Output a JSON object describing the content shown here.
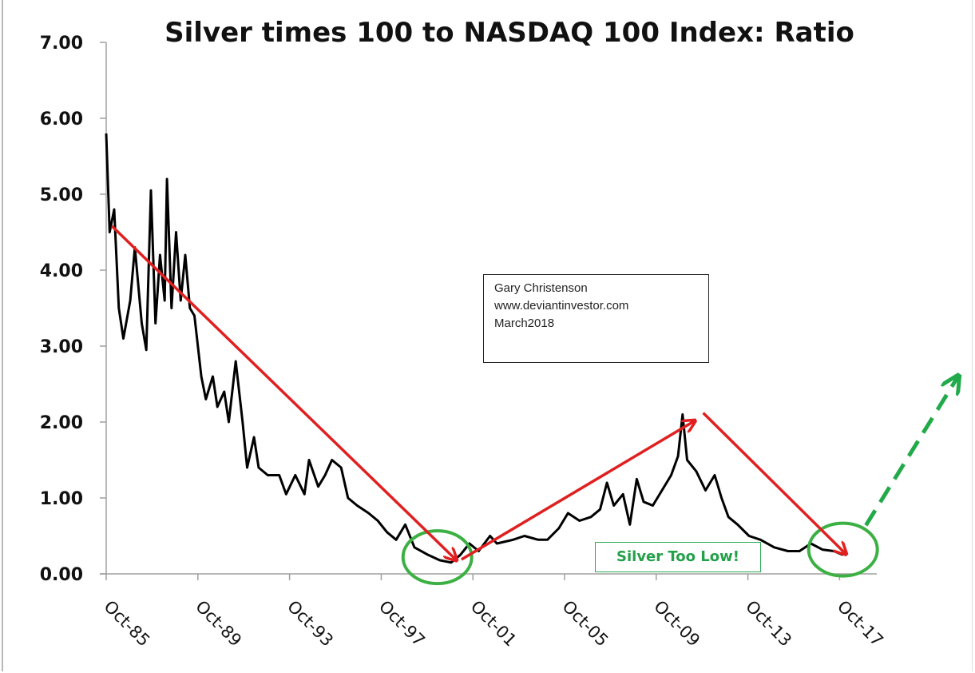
{
  "chart_data": {
    "type": "line",
    "title": "Silver times 100 to NASDAQ 100 Index:  Ratio",
    "xlabel": "",
    "ylabel": "",
    "ylim": [
      0,
      7
    ],
    "xlim": [
      1985.75,
      2023.5
    ],
    "grid": false,
    "y_ticks": [
      "0.00",
      "1.00",
      "2.00",
      "3.00",
      "4.00",
      "5.00",
      "6.00",
      "7.00"
    ],
    "x_ticks": [
      {
        "label": "Oct-85",
        "year": 1985.75
      },
      {
        "label": "Oct-89",
        "year": 1989.75
      },
      {
        "label": "Oct-93",
        "year": 1993.75
      },
      {
        "label": "Oct-97",
        "year": 1997.75
      },
      {
        "label": "Oct-01",
        "year": 2001.75
      },
      {
        "label": "Oct-05",
        "year": 2005.75
      },
      {
        "label": "Oct-09",
        "year": 2009.75
      },
      {
        "label": "Oct-13",
        "year": 2013.75
      },
      {
        "label": "Oct-17",
        "year": 2017.75
      }
    ],
    "series": [
      {
        "color": "#000000",
        "x": [
          1985.75,
          1985.9,
          1986.1,
          1986.3,
          1986.5,
          1986.8,
          1987.0,
          1987.3,
          1987.5,
          1987.7,
          1987.9,
          1988.1,
          1988.3,
          1988.4,
          1988.6,
          1988.8,
          1989.0,
          1989.2,
          1989.4,
          1989.6,
          1989.9,
          1990.1,
          1990.4,
          1990.6,
          1990.9,
          1991.1,
          1991.4,
          1991.7,
          1991.9,
          1992.2,
          1992.4,
          1992.8,
          1993.3,
          1993.6,
          1994.0,
          1994.4,
          1994.6,
          1995.0,
          1995.3,
          1995.6,
          1996.0,
          1996.3,
          1996.7,
          1997.2,
          1997.6,
          1998.0,
          1998.4,
          1998.8,
          1999.2,
          1999.8,
          2000.3,
          2000.8,
          2001.2,
          2001.6,
          2002.0,
          2002.5,
          2002.8,
          2003.5,
          2004.0,
          2004.6,
          2005.0,
          2005.5,
          2005.9,
          2006.4,
          2006.9,
          2007.3,
          2007.6,
          2007.9,
          2008.3,
          2008.6,
          2008.9,
          2009.2,
          2009.6,
          2010.0,
          2010.4,
          2010.7,
          2010.9,
          2011.1,
          2011.5,
          2011.9,
          2012.3,
          2012.6,
          2012.9,
          2013.3,
          2013.8,
          2014.3,
          2014.9,
          2015.5,
          2016.0,
          2016.5,
          2017.0,
          2017.5,
          2017.9
        ],
        "y": [
          5.8,
          4.5,
          4.8,
          3.5,
          3.1,
          3.6,
          4.3,
          3.3,
          2.95,
          5.05,
          3.3,
          4.2,
          3.6,
          5.2,
          3.5,
          4.5,
          3.6,
          4.2,
          3.5,
          3.4,
          2.6,
          2.3,
          2.6,
          2.2,
          2.4,
          2.0,
          2.8,
          2.0,
          1.4,
          1.8,
          1.4,
          1.3,
          1.3,
          1.05,
          1.3,
          1.05,
          1.5,
          1.15,
          1.3,
          1.5,
          1.4,
          1.0,
          0.9,
          0.8,
          0.7,
          0.55,
          0.45,
          0.65,
          0.35,
          0.25,
          0.18,
          0.15,
          0.25,
          0.4,
          0.3,
          0.5,
          0.4,
          0.45,
          0.5,
          0.45,
          0.45,
          0.6,
          0.8,
          0.7,
          0.75,
          0.85,
          1.2,
          0.9,
          1.05,
          0.65,
          1.25,
          0.95,
          0.9,
          1.1,
          1.3,
          1.55,
          2.1,
          1.5,
          1.35,
          1.1,
          1.3,
          1.0,
          0.75,
          0.65,
          0.5,
          0.45,
          0.35,
          0.3,
          0.3,
          0.4,
          0.32,
          0.3,
          0.25
        ]
      }
    ],
    "annotations": {
      "trend_arrows": [
        {
          "color": "#e02020",
          "from": [
            1986.0,
            4.58
          ],
          "to": [
            2001.0,
            0.19
          ],
          "dashed": false
        },
        {
          "color": "#e02020",
          "from": [
            2001.25,
            0.19
          ],
          "to": [
            2011.4,
            2.01
          ],
          "dashed": false
        },
        {
          "color": "#e02020",
          "from": [
            2011.8,
            2.12
          ],
          "to": [
            2018.0,
            0.27
          ],
          "dashed": false
        },
        {
          "color": "#22aa4a",
          "from": [
            2018.9,
            0.64
          ],
          "to": [
            2022.9,
            2.59
          ],
          "dashed": true
        }
      ],
      "circles": [
        {
          "color": "#3cb043",
          "center": [
            2000.2,
            0.22
          ]
        },
        {
          "color": "#3cb043",
          "center": [
            2017.9,
            0.32
          ]
        }
      ],
      "callout": "Silver Too Low!",
      "callout_color": "#23a04a",
      "note_lines": [
        "Gary Christenson",
        "www.deviantinvestor.com",
        "March2018"
      ]
    }
  }
}
